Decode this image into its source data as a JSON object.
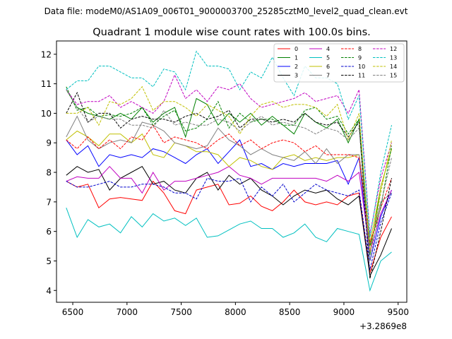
{
  "header": {
    "data_file": "Data file: modeM0/AS1A09_006T01_9000003700_25285cztM0_level2_quad_clean.evt"
  },
  "chart_data": {
    "type": "line",
    "title": "Quadrant 1 module wise count rates with 100.0s bins.",
    "xlabel": "",
    "ylabel": "",
    "x_offset_label": "+3.2869e8",
    "xlim": [
      6350,
      9580
    ],
    "ylim": [
      3.6,
      12.45
    ],
    "x_ticks": [
      6500,
      7000,
      7500,
      8000,
      8500,
      9000,
      9500
    ],
    "y_ticks": [
      4,
      5,
      6,
      7,
      8,
      9,
      10,
      11,
      12
    ],
    "x": [
      6440,
      6540,
      6640,
      6740,
      6840,
      6940,
      7040,
      7140,
      7240,
      7340,
      7440,
      7540,
      7640,
      7740,
      7840,
      7940,
      8040,
      8140,
      8240,
      8340,
      8440,
      8540,
      8640,
      8740,
      8840,
      8940,
      9040,
      9140,
      9240,
      9340,
      9440
    ],
    "legend_position": "top-right",
    "series": [
      {
        "name": "0",
        "color": "#ff0000",
        "dash": "solid",
        "values": [
          7.7,
          7.5,
          7.6,
          6.8,
          7.1,
          7.15,
          7.1,
          7.05,
          7.7,
          7.3,
          6.7,
          6.6,
          7.4,
          7.5,
          7.6,
          6.9,
          6.95,
          7.2,
          6.85,
          6.7,
          7.0,
          7.4,
          7.0,
          6.9,
          7.0,
          6.9,
          7.2,
          7.3,
          4.6,
          5.8,
          6.5
        ]
      },
      {
        "name": "1",
        "color": "#008000",
        "dash": "solid",
        "values": [
          10.8,
          10.2,
          10.0,
          9.9,
          9.8,
          10.0,
          9.8,
          10.2,
          9.7,
          10.0,
          10.2,
          9.2,
          10.5,
          10.3,
          9.6,
          10.0,
          9.7,
          10.0,
          9.6,
          9.9,
          9.6,
          9.3,
          10.0,
          9.7,
          9.5,
          9.8,
          9.0,
          9.8,
          5.2,
          7.5,
          8.8
        ]
      },
      {
        "name": "2",
        "color": "#0000ff",
        "dash": "solid",
        "values": [
          9.1,
          8.6,
          8.9,
          8.2,
          8.6,
          8.5,
          8.6,
          8.5,
          8.8,
          8.7,
          8.5,
          8.3,
          8.6,
          8.8,
          8.3,
          8.7,
          9.1,
          8.2,
          8.3,
          8.1,
          8.3,
          8.2,
          8.3,
          8.3,
          8.3,
          8.4,
          7.6,
          8.5,
          5.0,
          6.5,
          7.4
        ]
      },
      {
        "name": "3",
        "color": "#000000",
        "dash": "solid",
        "values": [
          7.9,
          8.2,
          8.0,
          8.1,
          7.4,
          7.8,
          8.0,
          8.2,
          7.6,
          7.7,
          7.4,
          7.3,
          7.8,
          8.0,
          7.4,
          7.9,
          7.6,
          7.8,
          7.4,
          7.2,
          6.9,
          7.2,
          7.4,
          7.3,
          7.4,
          7.1,
          6.9,
          7.2,
          4.5,
          5.2,
          6.1
        ]
      },
      {
        "name": "4",
        "color": "#c000c0",
        "dash": "solid",
        "values": [
          7.7,
          7.85,
          7.8,
          7.8,
          8.2,
          7.8,
          7.8,
          7.3,
          8.0,
          7.4,
          7.7,
          7.7,
          7.8,
          7.9,
          8.0,
          8.2,
          7.9,
          7.8,
          7.6,
          7.8,
          7.8,
          7.8,
          7.8,
          7.8,
          7.7,
          7.9,
          7.7,
          8.0,
          5.3,
          6.6,
          7.4
        ]
      },
      {
        "name": "5",
        "color": "#00c0c0",
        "dash": "solid",
        "values": [
          6.8,
          5.8,
          6.4,
          6.15,
          6.25,
          5.95,
          6.5,
          6.15,
          6.6,
          6.35,
          6.45,
          6.2,
          6.45,
          5.8,
          5.85,
          6.05,
          6.25,
          6.35,
          6.1,
          6.1,
          5.8,
          5.95,
          6.25,
          5.8,
          5.65,
          6.1,
          6.0,
          5.9,
          4.0,
          5.0,
          5.3
        ]
      },
      {
        "name": "6",
        "color": "#c0c000",
        "dash": "solid",
        "values": [
          9.1,
          9.4,
          9.2,
          8.9,
          9.3,
          9.3,
          9.0,
          9.3,
          8.6,
          8.5,
          9.0,
          8.9,
          8.7,
          8.7,
          8.6,
          8.2,
          8.5,
          8.4,
          8.2,
          8.1,
          8.5,
          8.6,
          8.4,
          8.5,
          8.4,
          8.5,
          8.5,
          8.6,
          5.6,
          7.5,
          8.8
        ]
      },
      {
        "name": "7",
        "color": "#808080",
        "dash": "solid",
        "values": [
          9.2,
          9.9,
          9.1,
          8.8,
          9.0,
          9.1,
          9.0,
          9.7,
          9.6,
          9.4,
          9.0,
          8.9,
          8.8,
          8.9,
          9.5,
          9.1,
          8.9,
          8.6,
          8.8,
          8.6,
          8.5,
          8.4,
          8.7,
          8.3,
          8.8,
          8.3,
          8.6,
          8.6,
          5.5,
          7.0,
          7.3
        ]
      },
      {
        "name": "8",
        "color": "#ff0000",
        "dash": "dashed",
        "values": [
          9.1,
          8.8,
          9.2,
          8.8,
          9.1,
          8.8,
          9.2,
          9.1,
          9.6,
          9.0,
          9.2,
          9.1,
          9.0,
          8.8,
          9.1,
          9.3,
          8.9,
          9.1,
          8.8,
          9.0,
          9.1,
          9.0,
          8.7,
          8.9,
          8.6,
          8.6,
          8.6,
          8.5,
          5.6,
          6.8,
          7.8
        ]
      },
      {
        "name": "9",
        "color": "#008000",
        "dash": "dashed",
        "values": [
          10.9,
          10.1,
          10.2,
          9.9,
          9.95,
          9.9,
          10.0,
          10.2,
          9.6,
          9.9,
          10.1,
          9.4,
          9.5,
          9.8,
          10.4,
          9.5,
          10.0,
          9.7,
          9.8,
          9.8,
          9.6,
          9.6,
          10.1,
          10.2,
          9.8,
          9.9,
          9.3,
          9.8,
          5.5,
          6.8,
          8.9
        ]
      },
      {
        "name": "10",
        "color": "#0000cc",
        "dash": "dashed",
        "values": [
          7.7,
          7.5,
          7.5,
          7.6,
          7.7,
          7.5,
          7.5,
          7.6,
          7.6,
          7.5,
          7.3,
          7.3,
          7.1,
          7.8,
          7.7,
          7.7,
          7.8,
          7.0,
          7.5,
          7.2,
          7.6,
          7.0,
          7.3,
          7.6,
          7.4,
          7.3,
          7.2,
          7.4,
          4.7,
          6.3,
          7.3
        ]
      },
      {
        "name": "11",
        "color": "#000000",
        "dash": "dashed",
        "values": [
          10.0,
          10.7,
          9.7,
          10.0,
          10.0,
          9.5,
          9.8,
          9.9,
          9.8,
          9.8,
          9.7,
          9.9,
          10.0,
          9.8,
          9.9,
          10.1,
          9.5,
          9.8,
          9.8,
          9.7,
          9.8,
          9.7,
          10.0,
          9.7,
          9.6,
          9.7,
          9.2,
          9.7,
          4.4,
          6.0,
          7.8
        ]
      },
      {
        "name": "12",
        "color": "#c000c0",
        "dash": "dashed",
        "values": [
          10.8,
          10.3,
          10.4,
          10.4,
          10.6,
          10.2,
          10.4,
          10.2,
          10.0,
          10.4,
          11.3,
          10.5,
          10.8,
          10.4,
          10.9,
          10.8,
          11.0,
          10.5,
          10.2,
          10.3,
          10.4,
          10.5,
          10.7,
          10.4,
          10.5,
          10.6,
          10.0,
          10.8,
          5.9,
          7.8,
          9.0
        ]
      },
      {
        "name": "13",
        "color": "#00c0c0",
        "dash": "dashed",
        "values": [
          10.8,
          11.1,
          11.1,
          11.6,
          11.6,
          11.4,
          11.2,
          11.2,
          10.9,
          11.5,
          11.4,
          10.8,
          12.1,
          11.6,
          11.6,
          11.5,
          10.8,
          11.4,
          11.2,
          11.9,
          11.2,
          10.6,
          11.6,
          11.2,
          11.2,
          11.0,
          9.8,
          10.6,
          5.8,
          8.0,
          9.6
        ]
      },
      {
        "name": "14",
        "color": "#c0c000",
        "dash": "dashed",
        "values": [
          10.0,
          10.0,
          10.2,
          9.6,
          10.4,
          10.3,
          10.5,
          10.9,
          10.1,
          10.4,
          10.4,
          10.2,
          9.9,
          10.3,
          10.1,
          9.9,
          9.3,
          9.9,
          10.3,
          10.4,
          10.2,
          10.3,
          10.3,
          10.2,
          9.9,
          10.3,
          9.1,
          10.0,
          5.3,
          7.3,
          9.1
        ]
      },
      {
        "name": "15",
        "color": "#808080",
        "dash": "dashed",
        "values": [
          10.8,
          10.2,
          9.7,
          9.9,
          9.8,
          9.8,
          9.6,
          9.6,
          9.5,
          10.1,
          9.6,
          9.7,
          9.6,
          9.6,
          9.8,
          9.7,
          9.4,
          9.7,
          9.9,
          9.6,
          9.7,
          9.6,
          9.5,
          9.3,
          9.5,
          9.4,
          9.1,
          9.5,
          5.0,
          6.9,
          8.5
        ]
      }
    ]
  }
}
